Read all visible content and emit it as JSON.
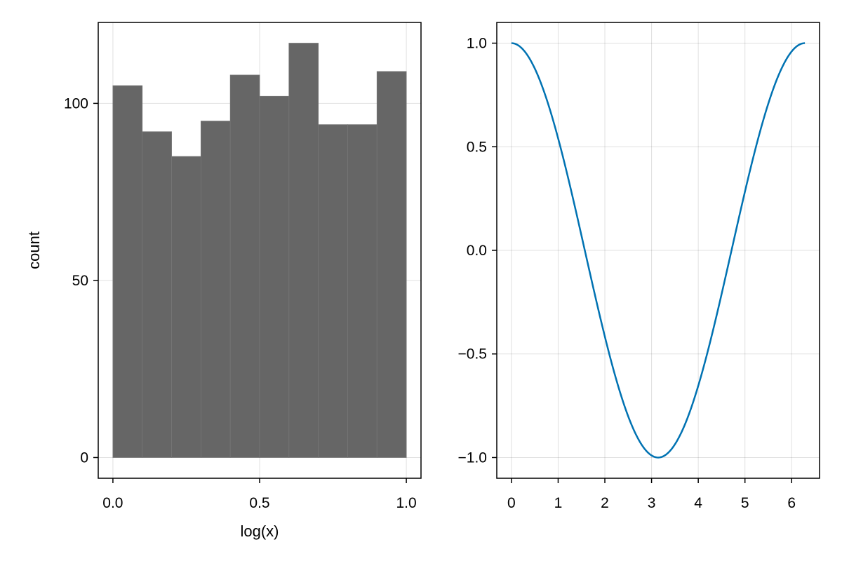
{
  "colors": {
    "bar_fill": "#666666",
    "bar_edge": "#767676",
    "line": "#0072b2",
    "background": "#ffffff"
  },
  "chart_data": [
    {
      "type": "bar",
      "xlabel": "log(x)",
      "ylabel": "count",
      "bin_edges": [
        0.0,
        0.1,
        0.2,
        0.3,
        0.4,
        0.5,
        0.6,
        0.7,
        0.8,
        0.9,
        1.0
      ],
      "values": [
        105,
        92,
        85,
        95,
        108,
        102,
        117,
        94,
        94,
        109
      ],
      "xlim": [
        -0.05,
        1.05
      ],
      "ylim": [
        -5.85,
        122.85
      ],
      "xticks": [
        0.0,
        0.5,
        1.0
      ],
      "xtick_labels": [
        "0.0",
        "0.5",
        "1.0"
      ],
      "yticks": [
        0,
        50,
        100
      ],
      "ytick_labels": [
        "0",
        "50",
        "100"
      ],
      "grid": true
    },
    {
      "type": "line",
      "xlabel": "",
      "ylabel": "",
      "function": "cos(x)",
      "x_range": [
        0,
        6.283185
      ],
      "xlim": [
        -0.314,
        6.597
      ],
      "ylim": [
        -1.1,
        1.1
      ],
      "xticks": [
        0,
        1,
        2,
        3,
        4,
        5,
        6
      ],
      "xtick_labels": [
        "0",
        "1",
        "2",
        "3",
        "4",
        "5",
        "6"
      ],
      "yticks": [
        -1.0,
        -0.5,
        0.0,
        0.5,
        1.0
      ],
      "ytick_labels": [
        "−1.0",
        "−0.5",
        "0.0",
        "0.5",
        "1.0"
      ],
      "grid": true
    }
  ]
}
